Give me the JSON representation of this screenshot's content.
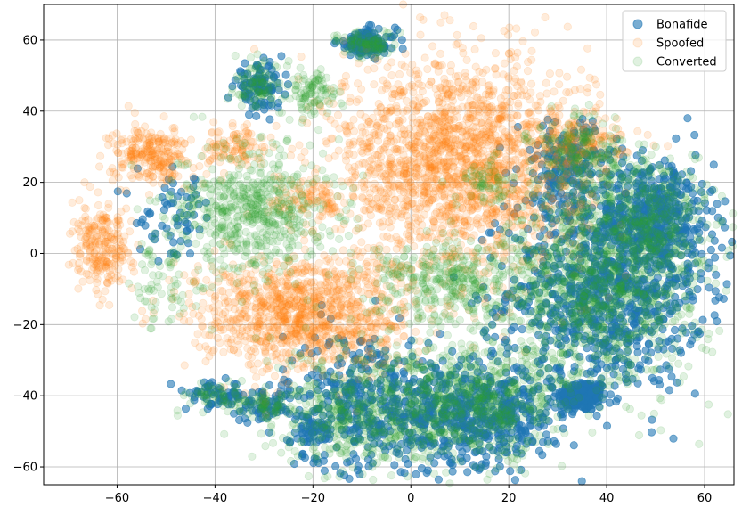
{
  "chart_data": {
    "type": "scatter",
    "title": "",
    "xlabel": "",
    "ylabel": "",
    "xlim": [
      -75,
      66
    ],
    "ylim": [
      -65,
      70
    ],
    "xticks": [
      -60,
      -40,
      -20,
      0,
      20,
      40,
      60
    ],
    "yticks": [
      -60,
      -40,
      -20,
      0,
      20,
      40,
      60
    ],
    "grid": true,
    "legend_position": "top-right",
    "series": [
      {
        "name": "Bonafide",
        "color": "#1f77b4",
        "alpha": 0.6,
        "clusters": [
          {
            "cx": 35,
            "cy": -40,
            "sx": 2.5,
            "sy": 2.2,
            "n": 220
          },
          {
            "cx": 40,
            "cy": -10,
            "sx": 10,
            "sy": 14,
            "n": 900
          },
          {
            "cx": 15,
            "cy": -45,
            "sx": 8,
            "sy": 7,
            "n": 500
          },
          {
            "cx": -8,
            "cy": -42,
            "sx": 9,
            "sy": 10,
            "n": 450
          },
          {
            "cx": 50,
            "cy": 10,
            "sx": 6,
            "sy": 8,
            "n": 400
          },
          {
            "cx": 32,
            "cy": 25,
            "sx": 5,
            "sy": 6,
            "n": 200
          },
          {
            "cx": -9,
            "cy": 59,
            "sx": 3,
            "sy": 2,
            "n": 120
          },
          {
            "cx": -31,
            "cy": 47,
            "sx": 2.5,
            "sy": 3,
            "n": 100
          },
          {
            "cx": -40,
            "cy": -40,
            "sx": 3,
            "sy": 2,
            "n": 60
          },
          {
            "cx": -30,
            "cy": -43,
            "sx": 3,
            "sy": 2,
            "n": 60
          },
          {
            "cx": -20,
            "cy": -50,
            "sx": 2,
            "sy": 3,
            "n": 40
          },
          {
            "cx": -48,
            "cy": 10,
            "sx": 4,
            "sy": 6,
            "n": 60
          }
        ]
      },
      {
        "name": "Spoofed",
        "color": "#ff7f0e",
        "alpha": 0.15,
        "clusters": [
          {
            "cx": 10,
            "cy": 25,
            "sx": 13,
            "sy": 15,
            "n": 2000
          },
          {
            "cx": -22,
            "cy": -17,
            "sx": 11,
            "sy": 8,
            "n": 1100
          },
          {
            "cx": -53,
            "cy": 28,
            "sx": 4,
            "sy": 4,
            "n": 260
          },
          {
            "cx": -63,
            "cy": 1,
            "sx": 3,
            "sy": 6,
            "n": 240
          },
          {
            "cx": -36,
            "cy": 30,
            "sx": 3,
            "sy": 3,
            "n": 100
          },
          {
            "cx": -20,
            "cy": 15,
            "sx": 4,
            "sy": 3,
            "n": 100
          },
          {
            "cx": 35,
            "cy": 32,
            "sx": 4,
            "sy": 4,
            "n": 150
          }
        ]
      },
      {
        "name": "Converted",
        "color": "#2ca02c",
        "alpha": 0.15,
        "clusters": [
          {
            "cx": 38,
            "cy": -10,
            "sx": 11,
            "sy": 14,
            "n": 1100
          },
          {
            "cx": 13,
            "cy": -42,
            "sx": 9,
            "sy": 8,
            "n": 650
          },
          {
            "cx": -10,
            "cy": -45,
            "sx": 9,
            "sy": 9,
            "n": 500
          },
          {
            "cx": 8,
            "cy": -8,
            "sx": 8,
            "sy": 6,
            "n": 350
          },
          {
            "cx": -32,
            "cy": 12,
            "sx": 8,
            "sy": 9,
            "n": 600
          },
          {
            "cx": -20,
            "cy": 45,
            "sx": 2.5,
            "sy": 3,
            "n": 100
          },
          {
            "cx": -31,
            "cy": 47,
            "sx": 2.5,
            "sy": 3,
            "n": 100
          },
          {
            "cx": -9,
            "cy": 59,
            "sx": 3,
            "sy": 2,
            "n": 100
          },
          {
            "cx": 48,
            "cy": 10,
            "sx": 7,
            "sy": 8,
            "n": 350
          },
          {
            "cx": 35,
            "cy": 28,
            "sx": 5,
            "sy": 5,
            "n": 200
          },
          {
            "cx": -40,
            "cy": -40,
            "sx": 3,
            "sy": 2,
            "n": 60
          },
          {
            "cx": -30,
            "cy": -43,
            "sx": 3,
            "sy": 2,
            "n": 60
          },
          {
            "cx": -50,
            "cy": -8,
            "sx": 4,
            "sy": 8,
            "n": 80
          },
          {
            "cx": 15,
            "cy": 20,
            "sx": 3,
            "sy": 3,
            "n": 60
          }
        ]
      }
    ]
  }
}
